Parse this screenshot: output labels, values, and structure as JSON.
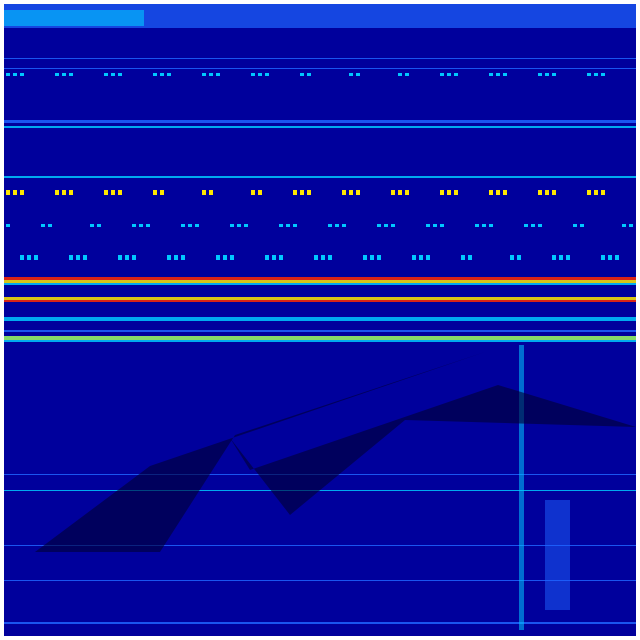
{
  "colors": {
    "background": "#00009c",
    "deep": "#000080",
    "cyan": "#00c8ff",
    "light_blue": "#1e64ff",
    "yellow": "#ffe600",
    "red": "#ff2a00",
    "green": "#9cff60",
    "shadow": "#000033"
  }
}
